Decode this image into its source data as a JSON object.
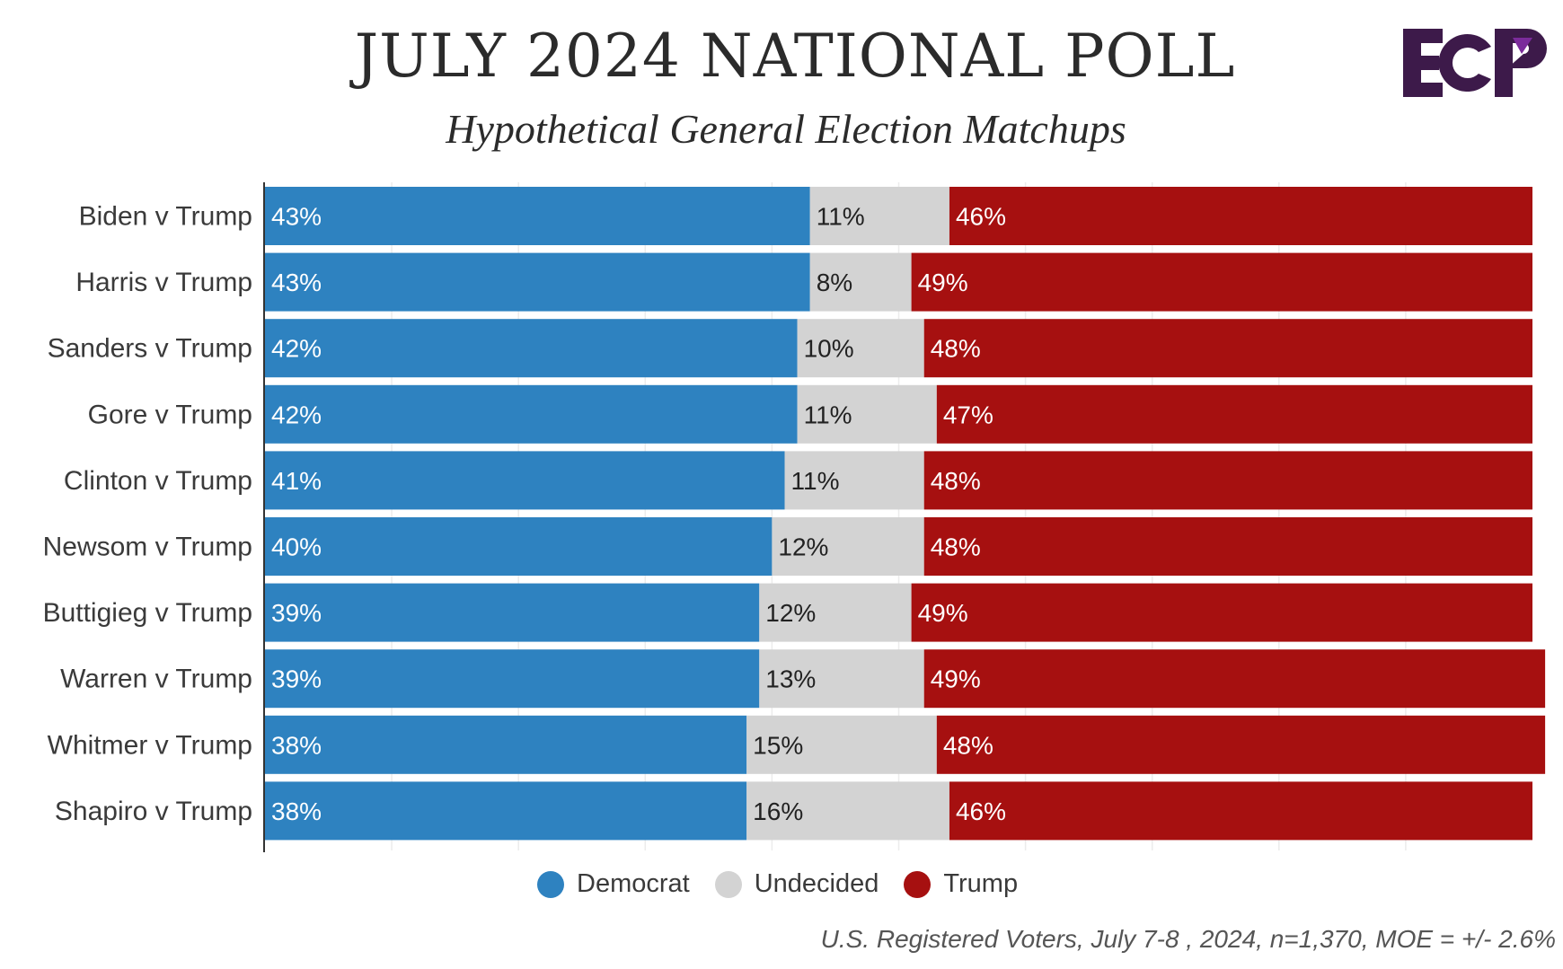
{
  "header": {
    "title": "JULY 2024 NATIONAL POLL",
    "subtitle": "Hypothetical General Election Matchups",
    "logo_text": "ECP"
  },
  "colors": {
    "democrat": "#2e82c0",
    "undecided": "#d3d3d3",
    "trump": "#a61010",
    "logo": "#3d1a4a",
    "logo_accent": "#7b2b9b"
  },
  "chart_data": {
    "type": "bar",
    "orientation": "horizontal",
    "stacked": true,
    "title": "JULY 2024 NATIONAL POLL",
    "subtitle": "Hypothetical General Election Matchups",
    "categories": [
      "Biden v Trump",
      "Harris v Trump",
      "Sanders v Trump",
      "Gore v Trump",
      "Clinton v Trump",
      "Newsom v Trump",
      "Buttigieg v Trump",
      "Warren v Trump",
      "Whitmer v Trump",
      "Shapiro v Trump"
    ],
    "series": [
      {
        "name": "Democrat",
        "values": [
          43,
          43,
          42,
          42,
          41,
          40,
          39,
          39,
          38,
          38
        ],
        "labels": [
          "43%",
          "43%",
          "42%",
          "42%",
          "41%",
          "40%",
          "39%",
          "39%",
          "38%",
          "38%"
        ]
      },
      {
        "name": "Undecided",
        "values": [
          11,
          8,
          10,
          11,
          11,
          12,
          12,
          13,
          15,
          16
        ],
        "labels": [
          "11%",
          "8%",
          "10%",
          "11%",
          "11%",
          "12%",
          "12%",
          "13%",
          "15%",
          "16%"
        ]
      },
      {
        "name": "Trump",
        "values": [
          46,
          49,
          48,
          47,
          48,
          48,
          49,
          49,
          48,
          46
        ],
        "labels": [
          "46%",
          "49%",
          "48%",
          "47%",
          "48%",
          "48%",
          "49%",
          "49%",
          "48%",
          "46%"
        ]
      }
    ],
    "xlim": [
      0,
      100
    ],
    "grid": true,
    "legend_position": "bottom-center",
    "xlabel": "",
    "ylabel": ""
  },
  "legend": {
    "items": [
      "Democrat",
      "Undecided",
      "Trump"
    ]
  },
  "footnote": "U.S. Registered Voters, July 7-8 , 2024, n=1,370, MOE = +/- 2.6%"
}
